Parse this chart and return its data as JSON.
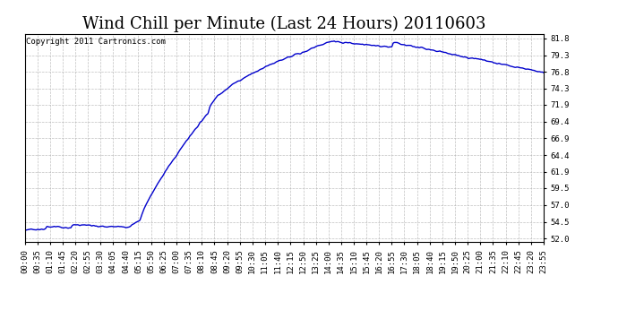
{
  "title": "Wind Chill per Minute (Last 24 Hours) 20110603",
  "copyright_text": "Copyright 2011 Cartronics.com",
  "line_color": "#0000CC",
  "background_color": "#ffffff",
  "plot_bg_color": "#ffffff",
  "grid_color": "#b0b0b0",
  "y_ticks": [
    52.0,
    54.5,
    57.0,
    59.5,
    61.9,
    64.4,
    66.9,
    69.4,
    71.9,
    74.3,
    76.8,
    79.3,
    81.8
  ],
  "ylim": [
    51.5,
    82.5
  ],
  "x_tick_labels": [
    "00:00",
    "00:35",
    "01:10",
    "01:45",
    "02:20",
    "02:55",
    "03:30",
    "04:05",
    "04:40",
    "05:15",
    "05:50",
    "06:25",
    "07:00",
    "07:35",
    "08:10",
    "08:45",
    "09:20",
    "09:55",
    "10:30",
    "11:05",
    "11:40",
    "12:15",
    "12:50",
    "13:25",
    "14:00",
    "14:35",
    "15:10",
    "15:45",
    "16:20",
    "16:55",
    "17:30",
    "18:05",
    "18:40",
    "19:15",
    "19:50",
    "20:25",
    "21:00",
    "21:35",
    "22:10",
    "22:45",
    "23:20",
    "23:55"
  ],
  "title_fontsize": 13,
  "tick_fontsize": 6.5,
  "copyright_fontsize": 6.5,
  "line_width": 1.0,
  "figsize": [
    6.9,
    3.75
  ],
  "dpi": 100
}
